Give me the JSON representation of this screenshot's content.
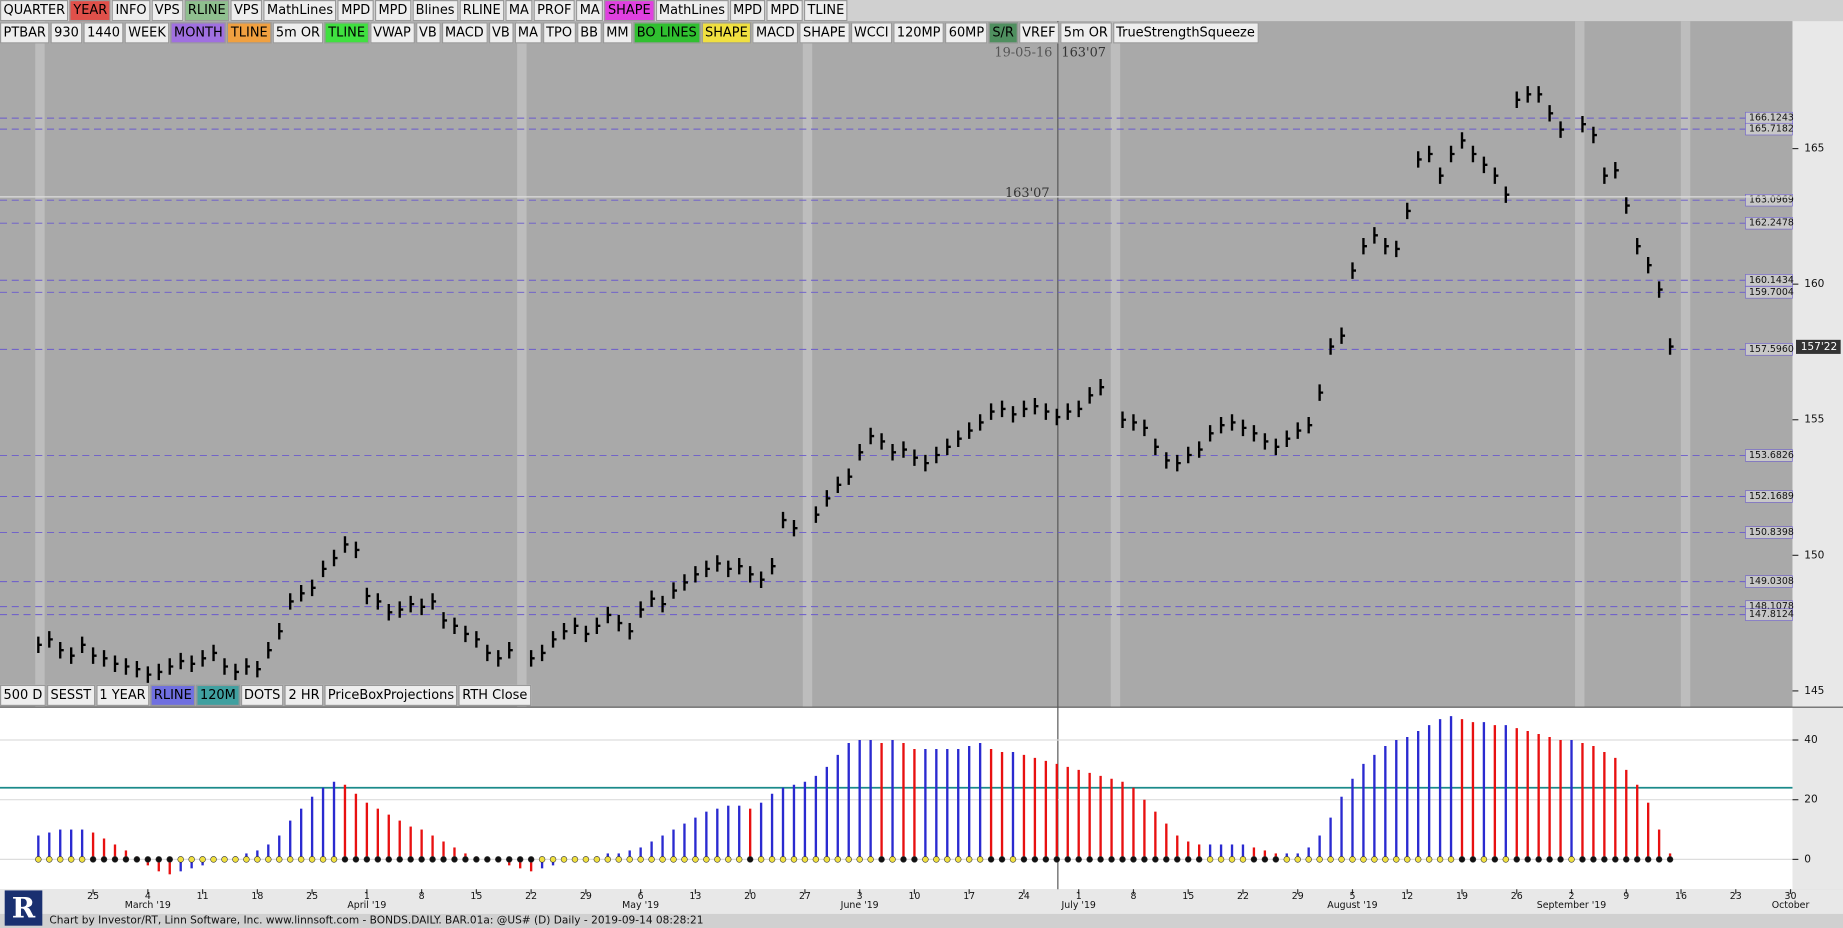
{
  "toolbar_top": {
    "buttons": [
      {
        "label": "QUARTER"
      },
      {
        "label": "YEAR",
        "bg": "#e0504a"
      },
      {
        "label": "INFO"
      },
      {
        "label": "VPS"
      },
      {
        "label": "RLINE",
        "bg": "#8fbf8f"
      },
      {
        "label": "VPS"
      },
      {
        "label": "MathLines"
      },
      {
        "label": "MPD"
      },
      {
        "label": "MPD"
      },
      {
        "label": "Blines"
      },
      {
        "label": "RLINE"
      },
      {
        "label": "MA"
      },
      {
        "label": "PROF"
      },
      {
        "label": "MA"
      },
      {
        "label": "SHAPE",
        "bg": "#e040e0"
      },
      {
        "label": "MathLines"
      },
      {
        "label": "MPD"
      },
      {
        "label": "MPD"
      },
      {
        "label": "TLINE"
      }
    ]
  },
  "toolbar_second": {
    "buttons": [
      {
        "label": "PTBAR"
      },
      {
        "label": "930"
      },
      {
        "label": "1440"
      },
      {
        "label": "WEEK"
      },
      {
        "label": "MONTH",
        "bg": "#a070e0"
      },
      {
        "label": "TLINE",
        "bg": "#f0a040"
      },
      {
        "label": "5m OR"
      },
      {
        "label": "TLINE",
        "bg": "#40e040"
      },
      {
        "label": "VWAP"
      },
      {
        "label": "VB"
      },
      {
        "label": "MACD"
      },
      {
        "label": "VB"
      },
      {
        "label": "MA"
      },
      {
        "label": "TPO"
      },
      {
        "label": "BB"
      },
      {
        "label": "MM"
      },
      {
        "label": "BO LINES",
        "bg": "#30c030"
      },
      {
        "label": "SHAPE",
        "bg": "#f0e040"
      },
      {
        "label": "MACD"
      },
      {
        "label": "SHAPE"
      },
      {
        "label": "WCCI"
      },
      {
        "label": "120MP"
      },
      {
        "label": "60MP"
      },
      {
        "label": "S/R",
        "bg": "#4f8f5f"
      },
      {
        "label": "VREF"
      },
      {
        "label": "5m OR"
      },
      {
        "label": "TrueStrengthSqueeze"
      }
    ]
  },
  "toolbar_bottom": {
    "buttons": [
      {
        "label": "500 D"
      },
      {
        "label": "SESST"
      },
      {
        "label": "1 YEAR"
      },
      {
        "label": "RLINE",
        "bg": "#7070e0"
      },
      {
        "label": "120M",
        "bg": "#40a0a0"
      },
      {
        "label": "DOTS"
      },
      {
        "label": "2 HR"
      },
      {
        "label": "PriceBoxProjections"
      },
      {
        "label": "RTH Close"
      }
    ]
  },
  "footer": "Chart by Investor/RT, Linn Software, Inc. www.linnsoft.com - BONDS.DAILY. BAR.01a: @US# (D) Daily - 2019-09-14 08:28:21",
  "chart_data": [
    {
      "type": "price_bar",
      "color": "#000000",
      "xlim": [
        -3.5,
        160.5
      ],
      "ylim": [
        144.4,
        169.7
      ],
      "yticks": [
        145,
        150,
        155,
        160,
        165
      ],
      "xticks": [
        {
          "value": 5,
          "label": "25"
        },
        {
          "value": 10,
          "label": "4"
        },
        {
          "value": 15,
          "label": "11"
        },
        {
          "value": 20,
          "label": "18"
        },
        {
          "value": 25,
          "label": "25"
        },
        {
          "value": 30,
          "label": "1"
        },
        {
          "value": 35,
          "label": "8"
        },
        {
          "value": 40,
          "label": "15"
        },
        {
          "value": 45,
          "label": "22"
        },
        {
          "value": 50,
          "label": "29"
        },
        {
          "value": 55,
          "label": "6"
        },
        {
          "value": 60,
          "label": "13"
        },
        {
          "value": 65,
          "label": "20"
        },
        {
          "value": 70,
          "label": "27"
        },
        {
          "value": 75,
          "label": "3"
        },
        {
          "value": 80,
          "label": "10"
        },
        {
          "value": 85,
          "label": "17"
        },
        {
          "value": 90,
          "label": "24"
        },
        {
          "value": 95,
          "label": "1"
        },
        {
          "value": 100,
          "label": "8"
        },
        {
          "value": 105,
          "label": "15"
        },
        {
          "value": 110,
          "label": "22"
        },
        {
          "value": 115,
          "label": "29"
        },
        {
          "value": 120,
          "label": "5"
        },
        {
          "value": 125,
          "label": "12"
        },
        {
          "value": 130,
          "label": "19"
        },
        {
          "value": 135,
          "label": "26"
        },
        {
          "value": 140,
          "label": "2"
        },
        {
          "value": 145,
          "label": "9"
        },
        {
          "value": 150,
          "label": "16"
        },
        {
          "value": 155,
          "label": "23"
        },
        {
          "value": 160,
          "label": "30"
        }
      ],
      "month_labels": [
        {
          "value": 10,
          "label": "March '19"
        },
        {
          "value": 30,
          "label": "April '19"
        },
        {
          "value": 55,
          "label": "May '19"
        },
        {
          "value": 75,
          "label": "June '19"
        },
        {
          "value": 95,
          "label": "July '19"
        },
        {
          "value": 120,
          "label": "August '19"
        },
        {
          "value": 140,
          "label": "September '19"
        },
        {
          "value": 160,
          "label": "October"
        }
      ],
      "values": [
        146.7,
        146.9,
        146.5,
        146.3,
        146.7,
        146.3,
        146.2,
        146.0,
        145.9,
        145.8,
        145.6,
        145.7,
        145.9,
        146.1,
        146.0,
        146.2,
        146.4,
        145.9,
        145.7,
        145.9,
        145.8,
        146.5,
        147.2,
        148.3,
        148.6,
        148.8,
        149.5,
        149.9,
        150.4,
        150.2,
        148.5,
        148.3,
        147.9,
        148.0,
        148.2,
        148.1,
        148.3,
        147.6,
        147.4,
        147.1,
        146.9,
        146.4,
        146.2,
        146.5,
        null,
        146.2,
        146.4,
        146.9,
        147.2,
        147.4,
        147.1,
        147.4,
        147.8,
        147.5,
        147.2,
        148.0,
        148.4,
        148.2,
        148.7,
        149.0,
        149.3,
        149.5,
        149.7,
        149.5,
        149.6,
        149.3,
        149.1,
        149.6,
        151.3,
        151.0,
        null,
        151.5,
        152.1,
        152.6,
        152.9,
        153.8,
        154.4,
        154.2,
        153.8,
        153.9,
        153.6,
        153.4,
        153.7,
        154.0,
        154.3,
        154.6,
        154.9,
        155.3,
        155.4,
        155.2,
        155.4,
        155.5,
        155.3,
        155.1,
        155.3,
        155.4,
        155.9,
        156.2,
        null,
        155.0,
        154.9,
        154.7,
        154.0,
        153.5,
        153.4,
        153.7,
        153.9,
        154.5,
        154.8,
        154.9,
        154.7,
        154.5,
        154.2,
        154.0,
        154.3,
        154.6,
        154.8,
        156.0,
        157.7,
        158.1,
        160.5,
        161.4,
        161.8,
        161.4,
        161.3,
        162.7,
        164.6,
        164.8,
        164.0,
        164.8,
        165.3,
        164.8,
        164.4,
        164.0,
        163.3,
        166.8,
        167.0,
        167.0,
        166.3,
        165.7,
        null,
        165.9,
        165.5,
        164.0,
        164.2,
        162.9,
        161.4,
        160.7,
        159.8,
        157.7
      ],
      "level_color": "#6a5acd",
      "levels": [
        166.1243,
        165.7182,
        163.0969,
        162.2478,
        160.1434,
        159.7004,
        {
          "value": 157.596,
          "label": "157.5960"
        },
        153.6826,
        152.1689,
        150.8398,
        149.0308,
        148.1078,
        147.8124
      ],
      "last_price": {
        "value": 157.6875,
        "label": "157'22"
      },
      "crosshair": {
        "date": "19-05-16",
        "price": {
          "value": 163.21875,
          "label": "163'07"
        }
      }
    },
    {
      "type": "histogram",
      "xlim": [
        -3.5,
        160.5
      ],
      "ylim": [
        -10,
        51
      ],
      "yticks": [
        0,
        20,
        40
      ],
      "up_color": "#2a2ad0",
      "down_color": "#e81010",
      "threshold": 24,
      "threshold_color": "#1a8a8a",
      "values": [
        8,
        9,
        10,
        10,
        10,
        9,
        7,
        5,
        3,
        1,
        -2,
        -4,
        -5,
        -4,
        -3,
        -2,
        -1,
        0,
        1,
        2,
        3,
        5,
        8,
        13,
        17,
        21,
        24,
        26,
        25,
        22,
        19,
        17,
        15,
        13,
        11,
        10,
        8,
        6,
        4,
        2,
        1,
        0,
        -1,
        -2,
        -3,
        -4,
        -3,
        -2,
        -1,
        0,
        0,
        1,
        2,
        2,
        3,
        4,
        6,
        8,
        10,
        12,
        14,
        16,
        17,
        18,
        18,
        17,
        19,
        22,
        24,
        25,
        26,
        28,
        31,
        35,
        39,
        40,
        40,
        39,
        40,
        39,
        37,
        37,
        37,
        37,
        37,
        38,
        39,
        37,
        36,
        36,
        35,
        34,
        33,
        32,
        31,
        30,
        29,
        28,
        27,
        26,
        24,
        20,
        16,
        12,
        8,
        6,
        5,
        5,
        5,
        5,
        5,
        4,
        3,
        2,
        2,
        2,
        4,
        8,
        14,
        21,
        27,
        32,
        35,
        38,
        40,
        41,
        43,
        45,
        47,
        48,
        47,
        46,
        46,
        45,
        45,
        44,
        43,
        42,
        41,
        40,
        40,
        39,
        38,
        36,
        34,
        30,
        25,
        19,
        10,
        2
      ]
    }
  ]
}
